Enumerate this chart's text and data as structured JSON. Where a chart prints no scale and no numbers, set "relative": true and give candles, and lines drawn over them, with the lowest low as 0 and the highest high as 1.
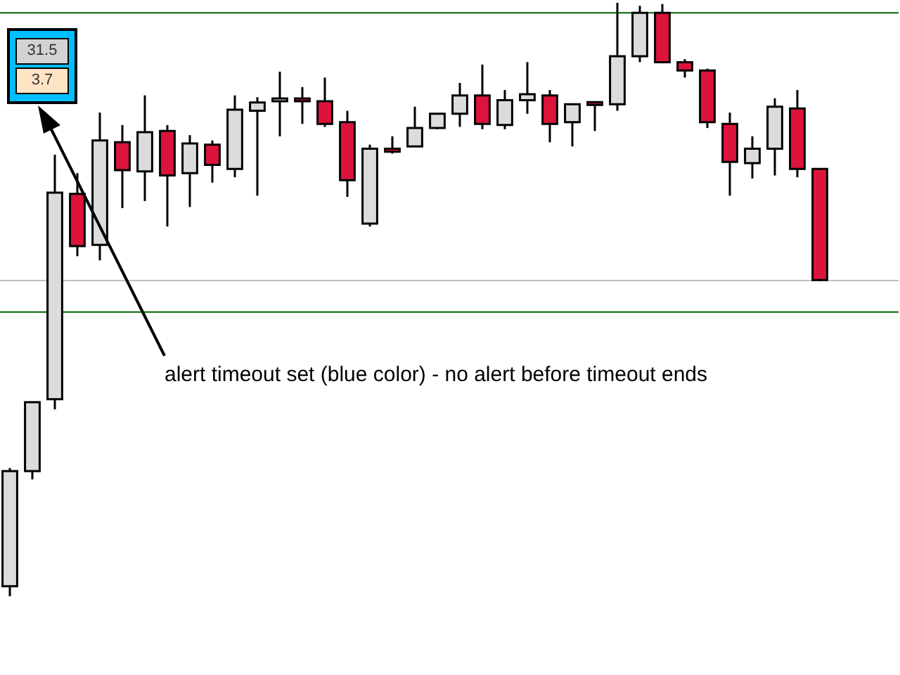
{
  "chart_data": {
    "type": "candlestick",
    "relative": true,
    "categories": [
      null,
      null,
      null,
      null,
      null,
      null,
      null,
      null,
      null,
      null,
      null,
      null,
      null,
      null,
      null,
      null,
      null,
      null,
      null,
      null,
      null,
      null,
      null,
      null,
      null,
      null,
      null,
      null,
      null,
      null,
      null,
      null,
      null,
      null,
      null,
      null,
      null
    ],
    "ohlc": [
      [
        0.017,
        0.216,
        0,
        0.211
      ],
      [
        0.211,
        0.327,
        0.197,
        0.327
      ],
      [
        0.332,
        0.744,
        0.315,
        0.68
      ],
      [
        0.678,
        0.713,
        0.573,
        0.59
      ],
      [
        0.592,
        0.815,
        0.566,
        0.768
      ],
      [
        0.765,
        0.794,
        0.654,
        0.718
      ],
      [
        0.716,
        0.844,
        0.666,
        0.782
      ],
      [
        0.784,
        0.794,
        0.623,
        0.709
      ],
      [
        0.713,
        0.777,
        0.656,
        0.763
      ],
      [
        0.761,
        0.768,
        0.697,
        0.727
      ],
      [
        0.72,
        0.844,
        0.706,
        0.82
      ],
      [
        0.818,
        0.841,
        0.675,
        0.832
      ],
      [
        0.834,
        0.884,
        0.775,
        0.839
      ],
      [
        0.837,
        0.858,
        0.796,
        0.834
      ],
      [
        0.834,
        0.874,
        0.791,
        0.796
      ],
      [
        0.799,
        0.818,
        0.673,
        0.701
      ],
      [
        0.628,
        0.761,
        0.623,
        0.754
      ],
      [
        0.754,
        0.775,
        0.746,
        0.749
      ],
      [
        0.758,
        0.825,
        0.758,
        0.789
      ],
      [
        0.789,
        0.813,
        0.787,
        0.813
      ],
      [
        0.813,
        0.865,
        0.791,
        0.844
      ],
      [
        0.844,
        0.896,
        0.787,
        0.796
      ],
      [
        0.794,
        0.853,
        0.787,
        0.836
      ],
      [
        0.836,
        0.9,
        0.813,
        0.846
      ],
      [
        0.844,
        0.853,
        0.765,
        0.796
      ],
      [
        0.799,
        0.829,
        0.758,
        0.829
      ],
      [
        0.83,
        0.832,
        0.784,
        0.828
      ],
      [
        0.829,
        1.0,
        0.818,
        0.91
      ],
      [
        0.91,
        0.995,
        0.9,
        0.983
      ],
      [
        0.983,
        0.998,
        0.898,
        0.9
      ],
      [
        0.9,
        0.905,
        0.874,
        0.886
      ],
      [
        0.886,
        0.889,
        0.789,
        0.799
      ],
      [
        0.796,
        0.815,
        0.675,
        0.732
      ],
      [
        0.73,
        0.775,
        0.704,
        0.754
      ],
      [
        0.754,
        0.839,
        0.709,
        0.825
      ],
      [
        0.822,
        0.853,
        0.706,
        0.72
      ],
      [
        0.72,
        0.72,
        0.531,
        0.533
      ]
    ],
    "colors": [
      "#dcdcdc",
      "#dcdcdc",
      "#dcdcdc",
      "#dc143c",
      "#dcdcdc",
      "#dc143c",
      "#dcdcdc",
      "#dc143c",
      "#dcdcdc",
      "#dc143c",
      "#dcdcdc",
      "#dcdcdc",
      "#dcdcdc",
      "#dc143c",
      "#dc143c",
      "#dc143c",
      "#dcdcdc",
      "#dc143c",
      "#dcdcdc",
      "#dcdcdc",
      "#dcdcdc",
      "#dc143c",
      "#dcdcdc",
      "#dcdcdc",
      "#dc143c",
      "#dcdcdc",
      "#dc143c",
      "#dcdcdc",
      "#dcdcdc",
      "#dc143c",
      "#dc143c",
      "#dc143c",
      "#dc143c",
      "#dcdcdc",
      "#dcdcdc",
      "#dc143c",
      "#dc143c"
    ],
    "ref_lines": [
      {
        "axis": "y",
        "value": 0.983,
        "color": "#006400"
      },
      {
        "axis": "y",
        "value": 0.532,
        "color": "#c0c0c0"
      },
      {
        "axis": "y",
        "value": 0.479,
        "color": "#006400"
      }
    ],
    "annotations": [
      "31.5",
      "3.7",
      "alert timeout set (blue color) - no alert before timeout ends"
    ]
  }
}
